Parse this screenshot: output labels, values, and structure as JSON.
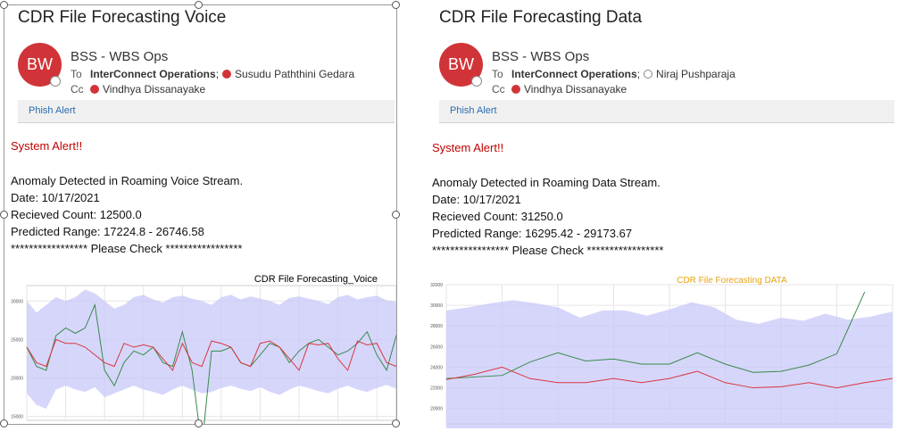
{
  "left_email": {
    "title": "CDR File Forecasting Voice",
    "avatar_initials": "BW",
    "sender": "BSS - WBS Ops",
    "to_label": "To",
    "to_primary": "InterConnect Operations",
    "to_sep": ";",
    "to_secondary": "Susudu Paththini Gedara",
    "cc_label": "Cc",
    "cc_name": "Vindhya Dissanayake",
    "phish_alert": "Phish Alert",
    "alert_heading": "System Alert!!",
    "lines": [
      "Anomaly Detected in Roaming Voice Stream.",
      "Date: 10/17/2021",
      "Recieved Count: 12500.0",
      "Predicted Range: 17224.8 - 26746.58",
      "***************** Please Check *****************"
    ]
  },
  "right_email": {
    "title": "CDR File Forecasting Data",
    "avatar_initials": "BW",
    "sender": "BSS - WBS Ops",
    "to_label": "To",
    "to_primary": "InterConnect Operations",
    "to_sep": ";",
    "to_secondary": "Niraj Pushparaja",
    "cc_label": "Cc",
    "cc_name": "Vindhya Dissanayake",
    "phish_alert": "Phish Alert",
    "alert_heading": "System Alert!!",
    "lines": [
      "Anomaly Detected in Roaming Data Stream.",
      "Date: 10/17/2021",
      "Recieved Count: 31250.0",
      "Predicted Range: 16295.42 - 29173.67",
      "***************** Please Check *****************"
    ]
  },
  "colors": {
    "avatar": "#d13438",
    "alert": "#c00000",
    "band": "#c8c8fa",
    "actual_line": "#3a8a4a",
    "forecast_line": "#d9363e",
    "voice_title": "#000000",
    "data_title": "#e8a317"
  },
  "chart_data": [
    {
      "type": "line",
      "title": "CDR File Forecasting_Voice",
      "xlabel": "",
      "ylabel": "",
      "ylim": [
        14500,
        32000
      ],
      "yticks": [
        "15000",
        "20000",
        "25000",
        "30000"
      ],
      "grid": true,
      "x": [
        0,
        1,
        2,
        3,
        4,
        5,
        6,
        7,
        8,
        9,
        10,
        11,
        12,
        13,
        14,
        15,
        16,
        17,
        18,
        19,
        20,
        21,
        22,
        23,
        24,
        25,
        26,
        27,
        28,
        29,
        30,
        31,
        32,
        33,
        34,
        35,
        36,
        37,
        38,
        39,
        40,
        41
      ],
      "band_upper": [
        30000,
        28500,
        29500,
        30500,
        30000,
        30500,
        31500,
        31000,
        30000,
        29000,
        29500,
        30500,
        30800,
        30200,
        29800,
        30500,
        30700,
        30300,
        30000,
        29500,
        30500,
        30800,
        30200,
        30600,
        30300,
        30000,
        29500,
        30400,
        30600,
        30300,
        30000,
        29600,
        30500,
        30800,
        30200,
        30500,
        30700,
        30100,
        29900,
        30600,
        30400,
        30200
      ],
      "band_lower": [
        18000,
        16500,
        16000,
        18500,
        19000,
        18500,
        18200,
        18800,
        17500,
        18000,
        18500,
        19000,
        18500,
        18200,
        17800,
        18500,
        19000,
        18500,
        18000,
        18200,
        18700,
        19000,
        18600,
        18300,
        18800,
        18200,
        17800,
        18500,
        19000,
        18700,
        18300,
        18000,
        18600,
        19000,
        18500,
        18200,
        18700,
        19100,
        18600,
        18200,
        19000,
        18800
      ],
      "series": [
        {
          "name": "",
          "values": [
            24000,
            21500,
            21000,
            25500,
            26500,
            25800,
            26500,
            29500,
            21000,
            19000,
            22000,
            23500,
            23000,
            24000,
            22000,
            21500,
            26000,
            21000,
            11000,
            23500,
            23500,
            24000,
            22000,
            21500,
            23000,
            24500,
            24000,
            22000,
            23500,
            24500,
            25000,
            24000,
            23000,
            23500,
            24500,
            26000,
            23000,
            21000,
            25500,
            25000,
            24500,
            25000
          ]
        },
        {
          "name": "",
          "values": [
            24000,
            22000,
            21500,
            25000,
            24500,
            24500,
            24000,
            23000,
            22000,
            21500,
            24500,
            24000,
            24300,
            24000,
            22500,
            21000,
            24500,
            22000,
            21500,
            24800,
            24500,
            24000,
            22000,
            21500,
            24500,
            24800,
            24000,
            22500,
            21000,
            24500,
            24300,
            24500,
            22500,
            21000,
            24800,
            24300,
            24500,
            22000,
            21500,
            24800,
            24500,
            24000
          ]
        }
      ]
    },
    {
      "type": "line",
      "title": "CDR File Forecasting DATA",
      "xlabel": "",
      "ylabel": "",
      "ylim": [
        18500,
        32000
      ],
      "yticks": [
        "20000",
        "22000",
        "24000",
        "26000",
        "28000",
        "30000",
        "32000"
      ],
      "grid": true,
      "x": [
        0,
        1,
        2,
        3,
        4,
        5,
        6,
        7,
        8,
        9,
        10,
        11,
        12,
        13,
        14,
        15,
        16,
        17,
        18,
        19,
        20
      ],
      "band_upper": [
        29500,
        29800,
        30200,
        30500,
        30200,
        29800,
        28800,
        29500,
        29500,
        29000,
        29600,
        30300,
        29800,
        28600,
        28200,
        28800,
        28500,
        29200,
        28600,
        28900,
        29400
      ],
      "band_lower": [
        17000,
        17000,
        17000,
        17000,
        17000,
        17000,
        17000,
        17000,
        17000,
        17000,
        17000,
        17000,
        17000,
        17000,
        17000,
        17000,
        17000,
        17000,
        17000,
        17000,
        17000
      ],
      "series": [
        {
          "name": "",
          "values": [
            22900,
            null,
            23200,
            24500,
            25400,
            24600,
            24800,
            24300,
            24300,
            25400,
            24300,
            23500,
            23600,
            24200,
            25300,
            31300
          ],
          "x": [
            0,
            1.5,
            3,
            4.5,
            6,
            7.5,
            9,
            10.5,
            12,
            13.5,
            15,
            16.5,
            18,
            19.5,
            21,
            22.5
          ]
        },
        {
          "name": "",
          "values": [
            22800,
            23300,
            24000,
            22900,
            22500,
            22500,
            22900,
            22500,
            22900,
            23600,
            22500,
            22000,
            22100,
            22500,
            22000,
            22500,
            22900
          ],
          "x": [
            0,
            1.5,
            3,
            4.5,
            6,
            7.5,
            9,
            10.5,
            12,
            13.5,
            15,
            16.5,
            18,
            19.5,
            21,
            22.5,
            24
          ]
        }
      ]
    }
  ]
}
